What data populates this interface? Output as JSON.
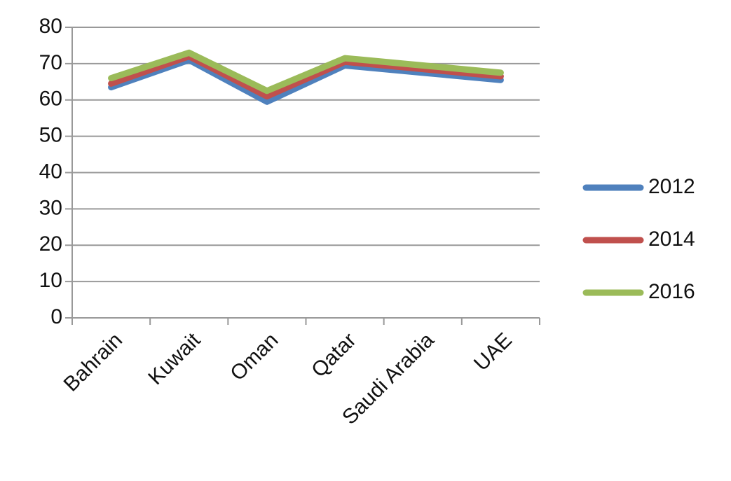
{
  "chart_data": {
    "type": "line",
    "categories": [
      "Bahrain",
      "Kuwait",
      "Oman",
      "Qatar",
      "Saudi Arabia",
      "UAE"
    ],
    "series": [
      {
        "name": "2012",
        "color": "#4f81bd",
        "values": [
          63.5,
          71,
          59.5,
          69.5,
          67.5,
          65.5
        ]
      },
      {
        "name": "2014",
        "color": "#c0504d",
        "values": [
          64.5,
          72,
          61,
          70.5,
          68.5,
          66.5
        ]
      },
      {
        "name": "2016",
        "color": "#9bbb59",
        "values": [
          66,
          73,
          62.5,
          71.5,
          69.5,
          67.5
        ]
      }
    ],
    "ylim": [
      0,
      80
    ],
    "yticks": [
      0,
      10,
      20,
      30,
      40,
      50,
      60,
      70,
      80
    ],
    "grid": true,
    "legend": "right"
  }
}
